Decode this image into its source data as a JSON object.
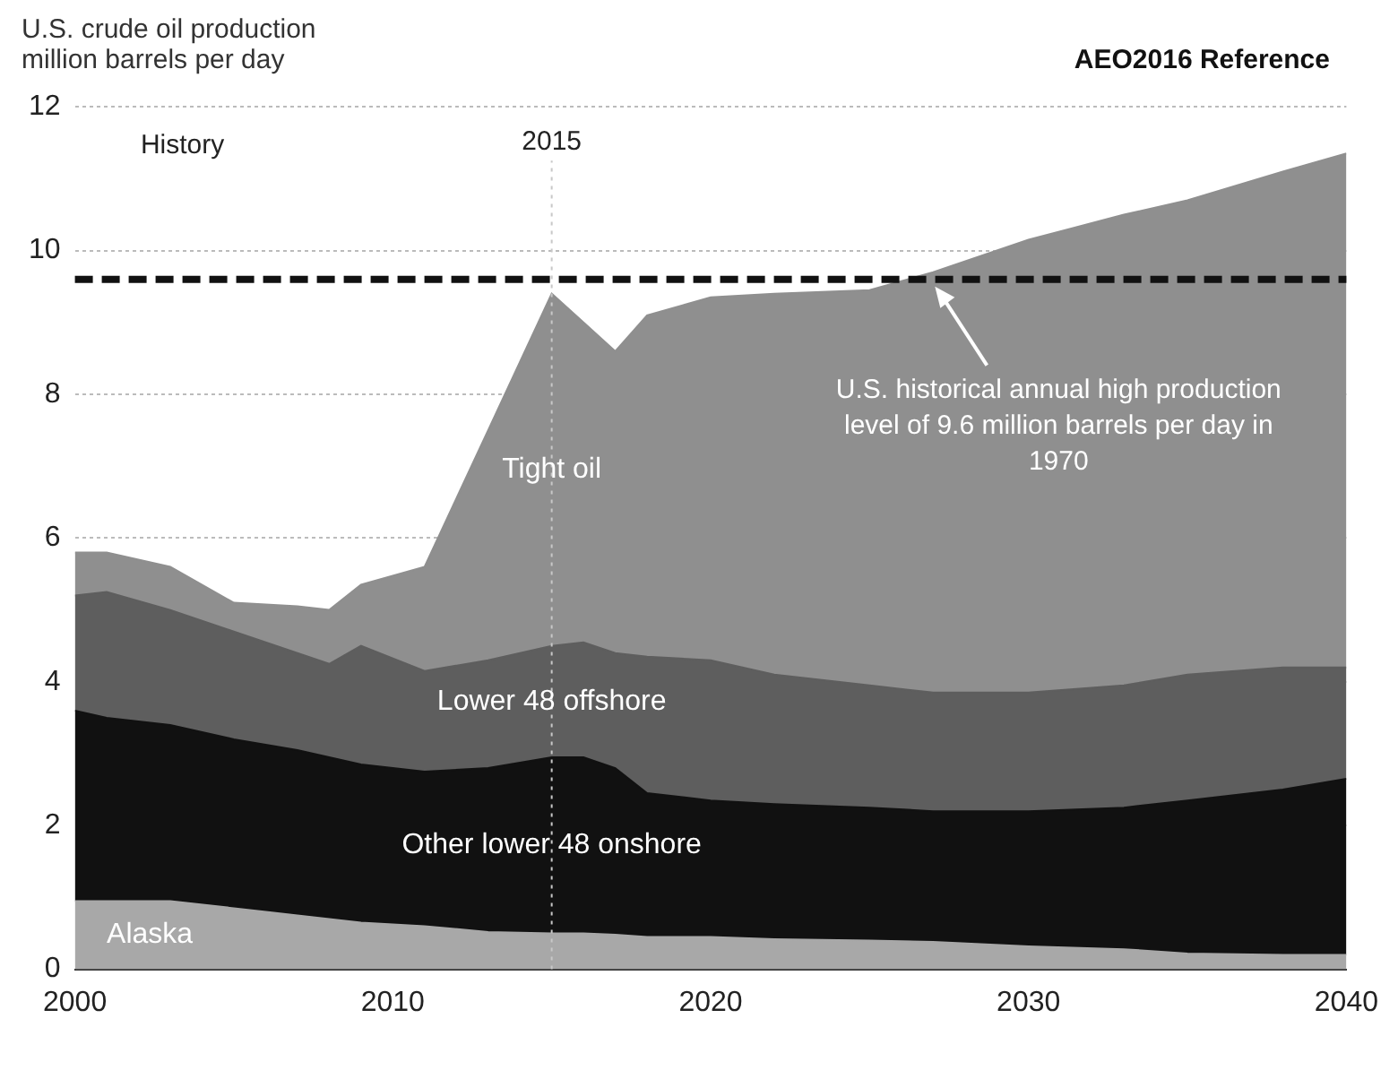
{
  "chart_data": {
    "type": "area",
    "title": "U.S. crude oil production",
    "ylabel": "million barrels per day",
    "subtitle": "AEO2016 Reference",
    "stacked": true,
    "x": [
      2000,
      2001,
      2003,
      2005,
      2007,
      2008,
      2009,
      2011,
      2013,
      2015,
      2016,
      2017,
      2018,
      2020,
      2022,
      2025,
      2027,
      2030,
      2033,
      2035,
      2038,
      2040
    ],
    "series": [
      {
        "name": "Alaska",
        "color": "#a8a8a8",
        "values": [
          0.95,
          0.95,
          0.95,
          0.85,
          0.75,
          0.7,
          0.65,
          0.6,
          0.52,
          0.5,
          0.5,
          0.48,
          0.45,
          0.45,
          0.42,
          0.4,
          0.38,
          0.32,
          0.28,
          0.22,
          0.2,
          0.2
        ]
      },
      {
        "name": "Other lower 48 onshore",
        "color": "#111111",
        "values": [
          2.65,
          2.55,
          2.45,
          2.35,
          2.3,
          2.25,
          2.2,
          2.15,
          2.28,
          2.45,
          2.45,
          2.32,
          2.0,
          1.9,
          1.88,
          1.85,
          1.82,
          1.88,
          1.97,
          2.13,
          2.3,
          2.45
        ]
      },
      {
        "name": "Lower 48 offshore",
        "color": "#5e5e5e",
        "values": [
          1.6,
          1.75,
          1.6,
          1.5,
          1.35,
          1.3,
          1.65,
          1.4,
          1.5,
          1.55,
          1.6,
          1.6,
          1.9,
          1.95,
          1.8,
          1.7,
          1.65,
          1.65,
          1.7,
          1.75,
          1.7,
          1.55
        ]
      },
      {
        "name": "Tight oil",
        "color": "#8f8f8f",
        "values": [
          0.6,
          0.55,
          0.6,
          0.4,
          0.65,
          0.75,
          0.85,
          1.45,
          3.2,
          4.9,
          4.45,
          4.2,
          4.75,
          5.05,
          5.3,
          5.5,
          5.85,
          6.3,
          6.55,
          6.6,
          6.9,
          7.15
        ]
      }
    ],
    "xlim": [
      2000,
      2040
    ],
    "xticks": [
      2000,
      2010,
      2020,
      2030,
      2040
    ],
    "ylim": [
      0,
      12
    ],
    "yticks": [
      0,
      2,
      4,
      6,
      8,
      10,
      12
    ],
    "grid": "y",
    "legend": false,
    "ref_lines": [
      {
        "axis": "y",
        "value": 9.6,
        "color": "#111111",
        "line_style": "dashed"
      },
      {
        "axis": "x",
        "value": 2015,
        "label": "2015",
        "color": "#c8c8c8",
        "line_style": "dotted"
      }
    ],
    "annotations": [
      "History",
      {
        "text": "U.S. historical annual high production level of 9.6 million barrels per day in 1970",
        "x": 2027,
        "y": 9.6
      }
    ]
  }
}
